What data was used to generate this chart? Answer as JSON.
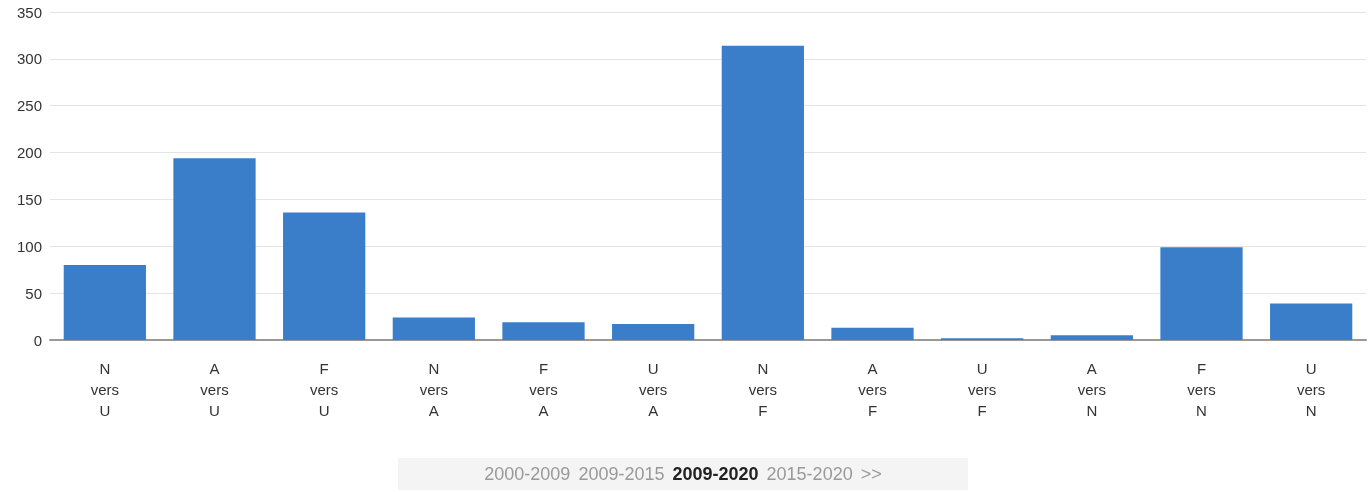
{
  "chart_data": {
    "type": "bar",
    "categories": [
      "N\nvers\nU",
      "A\nvers\nU",
      "F\nvers\nU",
      "N\nvers\nA",
      "F\nvers\nA",
      "U\nvers\nA",
      "N\nvers\nF",
      "A\nvers\nF",
      "U\nvers\nF",
      "A\nvers\nN",
      "F\nvers\nN",
      "U\nvers\nN"
    ],
    "values": [
      80,
      194,
      136,
      24,
      19,
      17,
      314,
      13,
      2,
      5,
      99,
      39
    ],
    "color": "#3a7dc9",
    "ylim": [
      0,
      350
    ],
    "yticks": [
      0,
      50,
      100,
      150,
      200,
      250,
      300,
      350
    ],
    "grid": "y",
    "annotations": [
      "2000-2009",
      "2009-2015",
      "2009-2020",
      "2015-2020",
      ">>"
    ]
  }
}
